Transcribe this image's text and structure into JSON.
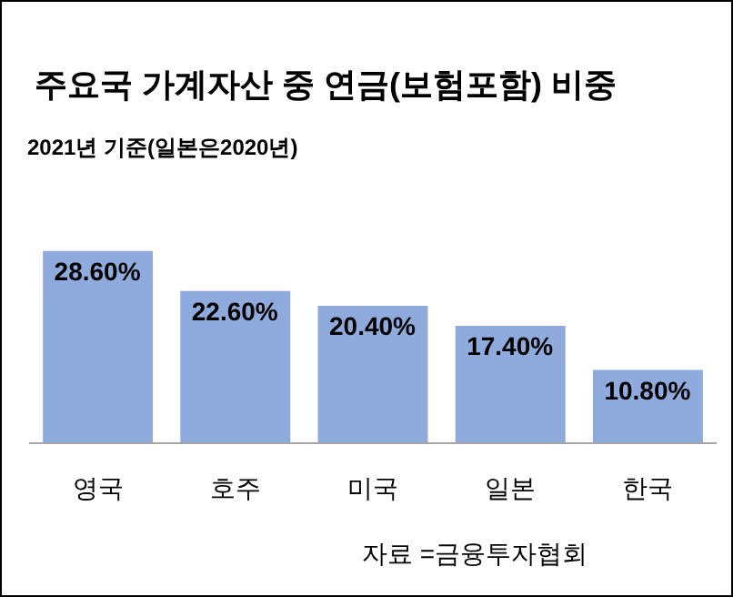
{
  "chart_data": {
    "type": "bar",
    "title": "주요국 가계자산 중 연금(보험포함) 비중",
    "subtitle": "2021년 기준(일본은2020년)",
    "categories": [
      "영국",
      "호주",
      "미국",
      "일본",
      "한국"
    ],
    "values": [
      28.6,
      22.6,
      20.4,
      17.4,
      10.8
    ],
    "value_labels": [
      "28.60%",
      "22.60%",
      "20.40%",
      "17.40%",
      "10.80%"
    ],
    "color": "#8faadc",
    "grid": false,
    "annotations": [
      "자료 =금융투자협회"
    ]
  }
}
